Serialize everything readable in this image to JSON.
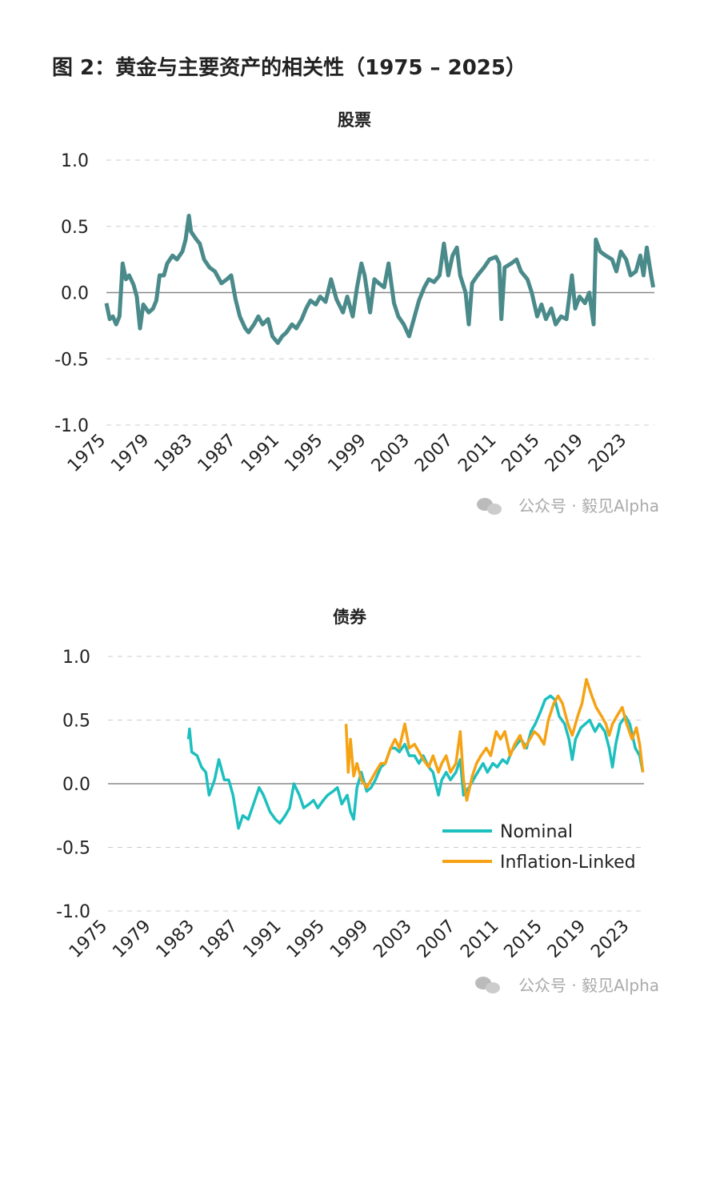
{
  "title": "图 2：黄金与主要资产的相关性（1975 – 2025）",
  "watermarks": [
    "公众号 · 毅见Alpha",
    "公众号 · 毅见Alpha"
  ],
  "chart_data": [
    {
      "type": "line",
      "title": "股票",
      "xlim": [
        1975,
        2025.5
      ],
      "xticks": [
        1975,
        1979,
        1983,
        1987,
        1991,
        1995,
        1999,
        2003,
        2007,
        2011,
        2015,
        2019,
        2023
      ],
      "ylim": [
        -1.0,
        1.0
      ],
      "yticks": [
        {
          "value": 1.0,
          "label": "1.0"
        },
        {
          "value": 0.5,
          "label": "0.5"
        },
        {
          "value": 0.0,
          "label": "0.0"
        },
        {
          "value": -0.5,
          "label": "-0.5"
        },
        {
          "value": -1.0,
          "label": "-1.0"
        }
      ],
      "grid": true,
      "reference_line": 0,
      "series": [
        {
          "color": "#4a8a8a",
          "x": [
            1975.0,
            1975.3,
            1975.6,
            1975.9,
            1976.2,
            1976.5,
            1976.8,
            1977.1,
            1977.5,
            1977.8,
            1978.1,
            1978.4,
            1978.9,
            1979.3,
            1979.6,
            1979.9,
            1980.3,
            1980.6,
            1981.1,
            1981.5,
            1982.0,
            1982.3,
            1982.6,
            1982.8,
            1983.3,
            1983.6,
            1984.0,
            1984.5,
            1985.0,
            1985.6,
            1986.1,
            1986.5,
            1986.9,
            1987.3,
            1987.8,
            1988.1,
            1988.6,
            1989.0,
            1989.4,
            1989.9,
            1990.3,
            1990.8,
            1991.2,
            1991.6,
            1992.1,
            1992.5,
            1993.0,
            1993.4,
            1993.8,
            1994.3,
            1994.7,
            1995.2,
            1995.7,
            1996.2,
            1996.8,
            1997.2,
            1997.7,
            1998.1,
            1998.5,
            1998.8,
            1999.3,
            1999.7,
            2000.1,
            2000.6,
            2001.0,
            2001.5,
            2001.9,
            2002.4,
            2002.9,
            2003.4,
            2003.8,
            2004.3,
            2004.7,
            2005.2,
            2005.7,
            2006.1,
            2006.5,
            2006.9,
            2007.3,
            2007.6,
            2008.1,
            2008.4,
            2008.7,
            2009.2,
            2009.8,
            2010.3,
            2010.9,
            2011.2,
            2011.4,
            2011.7,
            2012.3,
            2012.8,
            2013.2,
            2013.8,
            2014.2,
            2014.7,
            2015.1,
            2015.5,
            2016.0,
            2016.4,
            2016.9,
            2017.4,
            2017.9,
            2018.2,
            2018.6,
            2019.1,
            2019.5,
            2019.9,
            2020.1,
            2020.5,
            2021.0,
            2021.6,
            2022.0,
            2022.4,
            2022.9,
            2023.3,
            2023.8,
            2024.2,
            2024.5,
            2024.8,
            2025.2,
            2025.4
          ],
          "values": [
            -0.08,
            -0.2,
            -0.18,
            -0.24,
            -0.18,
            0.22,
            0.1,
            0.13,
            0.06,
            -0.03,
            -0.27,
            -0.09,
            -0.15,
            -0.12,
            -0.06,
            0.13,
            0.13,
            0.22,
            0.28,
            0.25,
            0.31,
            0.4,
            0.58,
            0.46,
            0.4,
            0.37,
            0.25,
            0.19,
            0.16,
            0.07,
            0.1,
            0.13,
            -0.05,
            -0.18,
            -0.27,
            -0.3,
            -0.24,
            -0.18,
            -0.24,
            -0.2,
            -0.33,
            -0.38,
            -0.33,
            -0.3,
            -0.24,
            -0.27,
            -0.2,
            -0.12,
            -0.06,
            -0.09,
            -0.03,
            -0.07,
            0.1,
            -0.05,
            -0.15,
            -0.03,
            -0.18,
            0.04,
            0.22,
            0.13,
            -0.15,
            0.1,
            0.07,
            0.04,
            0.22,
            -0.08,
            -0.18,
            -0.24,
            -0.33,
            -0.18,
            -0.06,
            0.04,
            0.1,
            0.08,
            0.13,
            0.37,
            0.13,
            0.28,
            0.34,
            0.13,
            0.0,
            -0.24,
            0.07,
            0.13,
            0.19,
            0.25,
            0.27,
            0.22,
            -0.2,
            0.19,
            0.22,
            0.25,
            0.16,
            0.1,
            0.0,
            -0.18,
            -0.09,
            -0.2,
            -0.12,
            -0.24,
            -0.18,
            -0.2,
            0.13,
            -0.12,
            -0.03,
            -0.08,
            0.0,
            -0.24,
            0.4,
            0.31,
            0.28,
            0.25,
            0.16,
            0.31,
            0.25,
            0.13,
            0.16,
            0.28,
            0.13,
            0.34,
            0.13,
            0.04
          ]
        }
      ]
    },
    {
      "type": "line",
      "title": "债券",
      "xlim": [
        1975,
        2024.3
      ],
      "xticks": [
        1975,
        1979,
        1983,
        1987,
        1991,
        1995,
        1999,
        2003,
        2007,
        2011,
        2015,
        2019,
        2023
      ],
      "ylim": [
        -1.0,
        1.0
      ],
      "yticks": [
        {
          "value": 1.0,
          "label": "1.0"
        },
        {
          "value": 0.5,
          "label": "0.5"
        },
        {
          "value": 0.0,
          "label": "0.0"
        },
        {
          "value": -0.5,
          "label": "-0.5"
        },
        {
          "value": -1.0,
          "label": "-1.0"
        }
      ],
      "grid": true,
      "reference_line": 0,
      "legend": "lower right",
      "series": [
        {
          "name": "Nominal",
          "color": "#1dbfbf",
          "x": [
            1982.4,
            1982.5,
            1982.7,
            1983.2,
            1983.6,
            1984.0,
            1984.3,
            1984.8,
            1985.2,
            1985.7,
            1986.1,
            1986.5,
            1987.0,
            1987.4,
            1987.9,
            1988.5,
            1988.9,
            1989.3,
            1989.9,
            1990.4,
            1990.8,
            1991.3,
            1991.7,
            1992.1,
            1992.6,
            1993.0,
            1993.5,
            1993.9,
            1994.3,
            1994.8,
            1995.2,
            1995.7,
            1996.1,
            1996.5,
            1997.0,
            1997.3,
            1997.6,
            1997.9,
            1998.3,
            1998.8,
            1999.2,
            1999.6,
            2000.1,
            2000.5,
            2001.0,
            2001.4,
            2001.8,
            2002.3,
            2002.7,
            2003.2,
            2003.6,
            2004.0,
            2004.5,
            2004.9,
            2005.4,
            2005.7,
            2006.1,
            2006.5,
            2007.0,
            2007.4,
            2007.7,
            2008.2,
            2008.6,
            2009.0,
            2009.5,
            2009.9,
            2010.4,
            2010.8,
            2011.3,
            2011.7,
            2012.1,
            2012.6,
            2013.0,
            2013.5,
            2013.9,
            2014.3,
            2014.8,
            2015.2,
            2015.7,
            2016.1,
            2016.5,
            2017.0,
            2017.4,
            2017.7,
            2018.0,
            2018.5,
            2018.9,
            2019.3,
            2019.8,
            2020.2,
            2020.7,
            2021.1,
            2021.4,
            2021.7,
            2022.1,
            2022.6,
            2023.0,
            2023.5,
            2023.9,
            2024.2
          ],
          "values": [
            0.35,
            0.43,
            0.25,
            0.22,
            0.13,
            0.09,
            -0.09,
            0.03,
            0.19,
            0.03,
            0.03,
            -0.09,
            -0.35,
            -0.25,
            -0.28,
            -0.13,
            -0.03,
            -0.09,
            -0.22,
            -0.28,
            -0.31,
            -0.25,
            -0.19,
            0.0,
            -0.09,
            -0.19,
            -0.16,
            -0.13,
            -0.19,
            -0.13,
            -0.09,
            -0.06,
            -0.03,
            -0.16,
            -0.09,
            -0.22,
            -0.28,
            -0.03,
            0.09,
            -0.06,
            -0.03,
            0.03,
            0.13,
            0.16,
            0.28,
            0.28,
            0.25,
            0.31,
            0.22,
            0.22,
            0.16,
            0.22,
            0.13,
            0.09,
            -0.09,
            0.03,
            0.09,
            0.03,
            0.09,
            0.19,
            -0.09,
            -0.03,
            0.03,
            0.09,
            0.16,
            0.09,
            0.16,
            0.13,
            0.19,
            0.16,
            0.25,
            0.31,
            0.35,
            0.28,
            0.41,
            0.47,
            0.57,
            0.66,
            0.69,
            0.66,
            0.53,
            0.47,
            0.35,
            0.19,
            0.35,
            0.44,
            0.47,
            0.5,
            0.41,
            0.47,
            0.41,
            0.28,
            0.13,
            0.31,
            0.47,
            0.53,
            0.47,
            0.28,
            0.22,
            0.09
          ]
        },
        {
          "name": "Inflation-Linked",
          "color": "#f5a214",
          "x": [
            1996.9,
            1997.1,
            1997.3,
            1997.6,
            1997.9,
            1998.3,
            1998.8,
            1999.2,
            1999.6,
            2000.1,
            2000.5,
            2001.0,
            2001.4,
            2001.8,
            2002.3,
            2002.7,
            2003.2,
            2003.6,
            2004.0,
            2004.5,
            2004.9,
            2005.4,
            2005.7,
            2006.1,
            2006.5,
            2007.0,
            2007.4,
            2007.7,
            2008.0,
            2008.5,
            2008.9,
            2009.3,
            2009.8,
            2010.2,
            2010.7,
            2011.1,
            2011.5,
            2012.0,
            2012.4,
            2012.9,
            2013.3,
            2013.8,
            2014.2,
            2014.6,
            2015.1,
            2015.5,
            2016.0,
            2016.4,
            2016.8,
            2017.3,
            2017.7,
            2018.2,
            2018.6,
            2019.0,
            2019.5,
            2019.9,
            2020.4,
            2020.8,
            2021.1,
            2021.4,
            2021.8,
            2022.3,
            2022.7,
            2023.2,
            2023.6,
            2023.9,
            2024.2
          ],
          "values": [
            0.47,
            0.09,
            0.35,
            0.06,
            0.16,
            0.03,
            -0.03,
            0.03,
            0.09,
            0.16,
            0.16,
            0.28,
            0.35,
            0.28,
            0.47,
            0.28,
            0.31,
            0.25,
            0.19,
            0.13,
            0.22,
            0.09,
            0.16,
            0.22,
            0.09,
            0.16,
            0.41,
            0.03,
            -0.13,
            0.06,
            0.16,
            0.22,
            0.28,
            0.22,
            0.41,
            0.35,
            0.41,
            0.22,
            0.31,
            0.38,
            0.28,
            0.35,
            0.41,
            0.38,
            0.31,
            0.5,
            0.63,
            0.69,
            0.63,
            0.47,
            0.38,
            0.53,
            0.63,
            0.82,
            0.69,
            0.6,
            0.53,
            0.47,
            0.38,
            0.47,
            0.53,
            0.6,
            0.47,
            0.35,
            0.44,
            0.31,
            0.09
          ]
        }
      ]
    }
  ]
}
